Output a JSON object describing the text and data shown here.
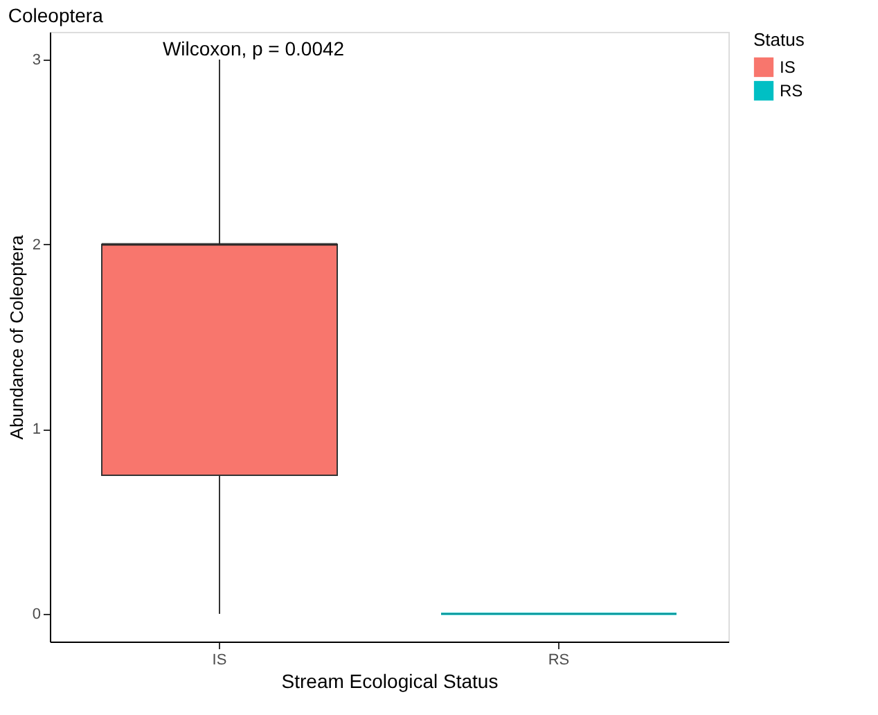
{
  "chart_data": {
    "type": "box",
    "title": "Coleoptera",
    "xlabel": "Stream Ecological Status",
    "ylabel": "Abundance of Coleoptera",
    "legend_title": "Status",
    "categories": [
      "IS",
      "RS"
    ],
    "series": [
      {
        "name": "IS",
        "color": "#f8766d",
        "boxes": [
          {
            "low": 0,
            "q1": 0.75,
            "median": 2,
            "q3": 2,
            "high": 3
          },
          null
        ]
      },
      {
        "name": "RS",
        "color": "#00bfc4",
        "boxes": [
          null,
          {
            "low": 0,
            "q1": 0,
            "median": 0,
            "q3": 0,
            "high": 0
          }
        ]
      }
    ],
    "ylim": [
      -0.15,
      3.15
    ],
    "yticks": [
      0,
      1,
      2,
      3
    ],
    "grid": false,
    "legend": "right",
    "annotations": [
      "Wilcoxon, p = 0.0042"
    ]
  }
}
